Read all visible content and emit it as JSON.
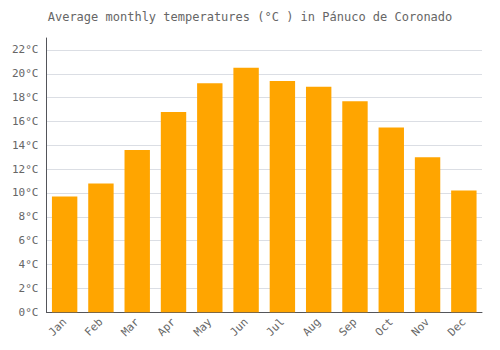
{
  "chart_data": {
    "type": "bar",
    "title": "Average monthly temperatures (°C ) in Pánuco de Coronado",
    "categories": [
      "Jan",
      "Feb",
      "Mar",
      "Apr",
      "May",
      "Jun",
      "Jul",
      "Aug",
      "Sep",
      "Oct",
      "Nov",
      "Dec"
    ],
    "values": [
      9.7,
      10.8,
      13.6,
      16.8,
      19.2,
      20.5,
      19.4,
      18.9,
      17.7,
      15.5,
      13.0,
      10.2
    ],
    "color": "#FFA500",
    "ylim": [
      0,
      23
    ],
    "yticks": [
      {
        "value": 0,
        "label": "0°C"
      },
      {
        "value": 2,
        "label": "2°C"
      },
      {
        "value": 4,
        "label": "4°C"
      },
      {
        "value": 6,
        "label": "6°C"
      },
      {
        "value": 8,
        "label": "8°C"
      },
      {
        "value": 10,
        "label": "10°C"
      },
      {
        "value": 12,
        "label": "12°C"
      },
      {
        "value": 14,
        "label": "14°C"
      },
      {
        "value": 16,
        "label": "16°C"
      },
      {
        "value": 18,
        "label": "18°C"
      },
      {
        "value": 20,
        "label": "20°C"
      },
      {
        "value": 22,
        "label": "22°C"
      }
    ],
    "grid": true
  }
}
